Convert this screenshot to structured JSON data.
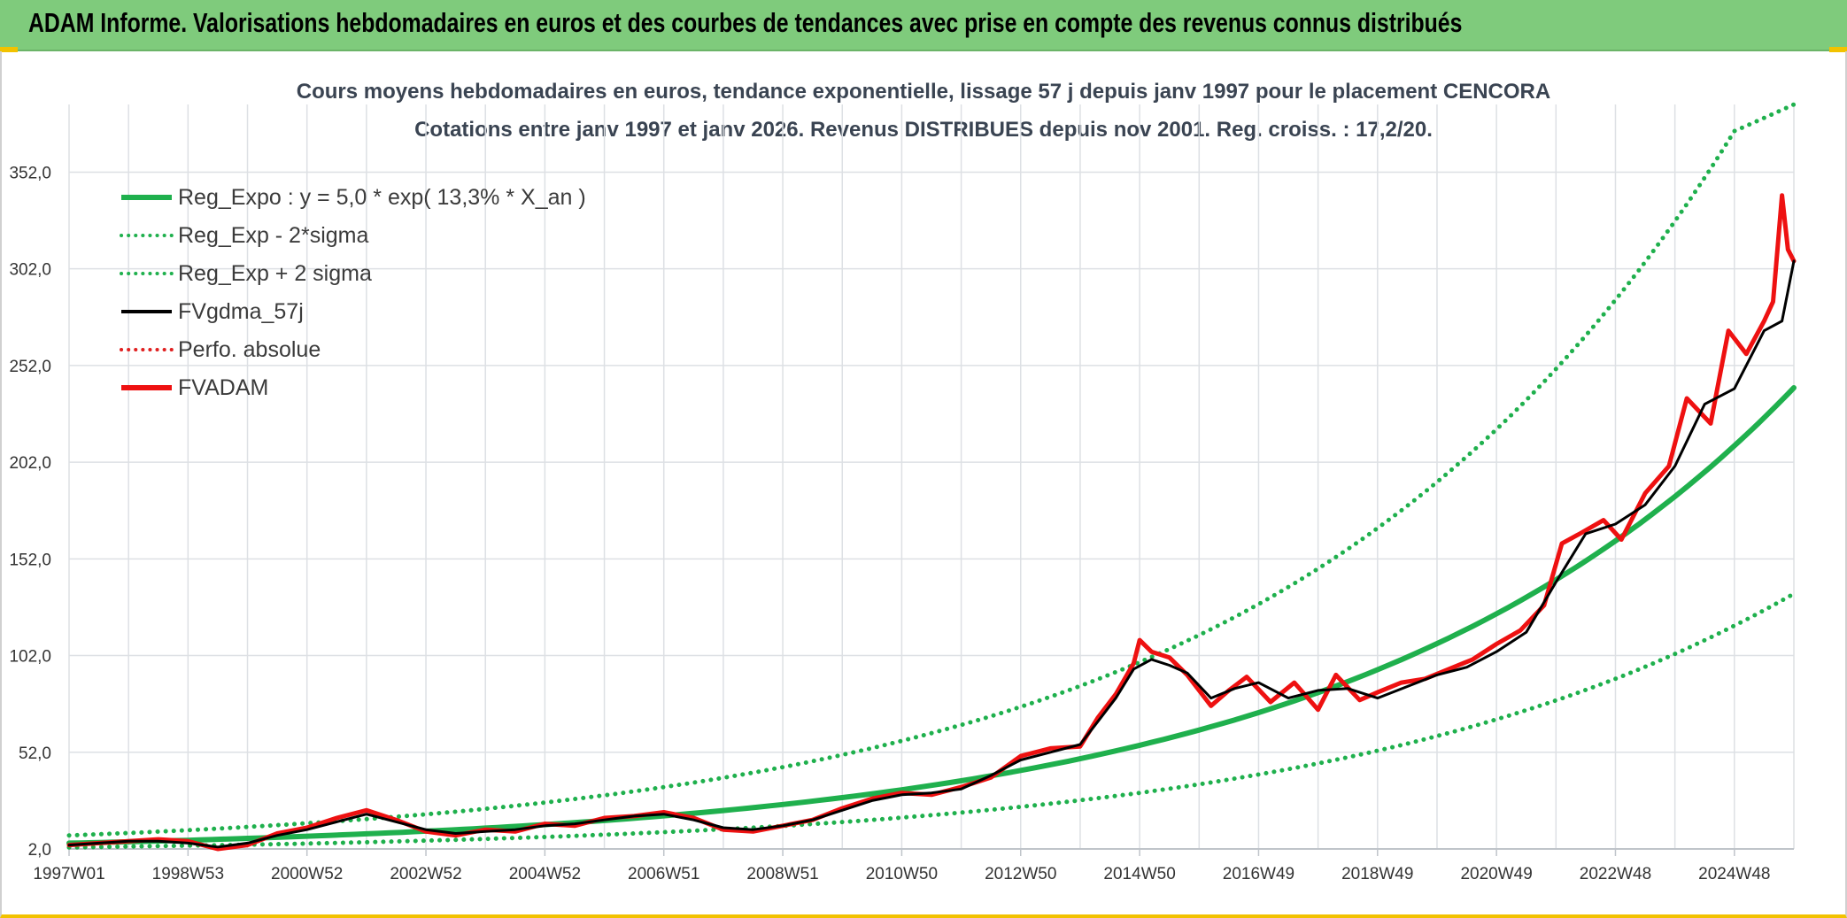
{
  "header": {
    "title": "ADAM Informe. Valorisations hebdomadaires en euros et des courbes de tendances avec prise en compte des revenus connus distribués"
  },
  "colors": {
    "banner": "#7fcb7c",
    "reg_expo": "#1fb04d",
    "sigma_bands": "#1fb04d",
    "fvgdma": "#000000",
    "perfo": "#e02020",
    "fvadam": "#ee1111",
    "accent": "#f2c200"
  },
  "chart_data": {
    "type": "line",
    "title_line1": "Cours moyens hebdomadaires en euros, tendance exponentielle, lissage 57 j depuis janv 1997 pour le placement CENCORA",
    "title_line2": "Cotations entre janv 1997 et janv 2026. Revenus DISTRIBUES depuis nov 2001. Reg. croiss. : 17,2/20.",
    "xlabel": "",
    "ylabel": "",
    "x_range": [
      1997.0,
      2026.0
    ],
    "y_range": [
      2.0,
      387.0
    ],
    "y_ticks": [
      {
        "value": 2,
        "label": "2,0"
      },
      {
        "value": 52,
        "label": "52,0"
      },
      {
        "value": 102,
        "label": "102,0"
      },
      {
        "value": 152,
        "label": "152,0"
      },
      {
        "value": 202,
        "label": "202,0"
      },
      {
        "value": 252,
        "label": "252,0"
      },
      {
        "value": 302,
        "label": "302,0"
      },
      {
        "value": 352,
        "label": "352,0"
      }
    ],
    "x_ticks": [
      {
        "value": 1997.0,
        "label": "1997W01"
      },
      {
        "value": 1999.0,
        "label": "1998W53"
      },
      {
        "value": 2001.0,
        "label": "2000W52"
      },
      {
        "value": 2003.0,
        "label": "2002W52"
      },
      {
        "value": 2005.0,
        "label": "2004W52"
      },
      {
        "value": 2007.0,
        "label": "2006W51"
      },
      {
        "value": 2009.0,
        "label": "2008W51"
      },
      {
        "value": 2011.0,
        "label": "2010W50"
      },
      {
        "value": 2013.0,
        "label": "2012W50"
      },
      {
        "value": 2015.0,
        "label": "2014W50"
      },
      {
        "value": 2017.0,
        "label": "2016W49"
      },
      {
        "value": 2019.0,
        "label": "2018W49"
      },
      {
        "value": 2021.0,
        "label": "2020W49"
      },
      {
        "value": 2023.0,
        "label": "2022W48"
      },
      {
        "value": 2025.0,
        "label": "2024W48"
      }
    ],
    "grid": true,
    "legend_position": "top-left",
    "legend": [
      {
        "label": "Reg_Expo : y = 5,0 * exp( 13,3% *  X_an )",
        "style": "solid-thick",
        "color": "#1fb04d"
      },
      {
        "label": "Reg_Exp - 2*sigma",
        "style": "dotted",
        "color": "#1fb04d"
      },
      {
        "label": "Reg_Exp + 2 sigma",
        "style": "dotted",
        "color": "#1fb04d"
      },
      {
        "label": "FVgdma_57j",
        "style": "solid",
        "color": "#000000"
      },
      {
        "label": "Perfo. absolue",
        "style": "dotted",
        "color": "#e02020"
      },
      {
        "label": "FVADAM",
        "style": "solid-thick",
        "color": "#ee1111"
      }
    ],
    "series": [
      {
        "name": "Reg_Expo",
        "x": [
          1997.0,
          1999.0,
          2001.0,
          2003.0,
          2005.0,
          2007.0,
          2009.0,
          2011.0,
          2013.0,
          2015.0,
          2017.0,
          2019.0,
          2021.0,
          2023.0,
          2025.0,
          2026.0
        ],
        "values": [
          5.0,
          6.5,
          8.6,
          11.2,
          14.6,
          19.1,
          25.0,
          32.6,
          42.6,
          55.6,
          72.5,
          94.7,
          123.6,
          161.3,
          210.5,
          240.5
        ]
      },
      {
        "name": "Reg_Exp - 2*sigma",
        "x": [
          1997.0,
          1999.0,
          2001.0,
          2003.0,
          2005.0,
          2007.0,
          2009.0,
          2011.0,
          2013.0,
          2015.0,
          2017.0,
          2019.0,
          2021.0,
          2023.0,
          2025.0,
          2026.0
        ],
        "values": [
          2.8,
          3.7,
          4.8,
          6.3,
          8.2,
          10.7,
          13.9,
          18.2,
          23.8,
          31.0,
          40.5,
          52.8,
          69.0,
          90.0,
          117.5,
          134.0
        ]
      },
      {
        "name": "Reg_Exp + 2 sigma",
        "x": [
          1997.0,
          1999.0,
          2001.0,
          2003.0,
          2005.0,
          2007.0,
          2009.0,
          2011.0,
          2013.0,
          2015.0,
          2017.0,
          2019.0,
          2021.0,
          2023.0,
          2025.0,
          2026.0
        ],
        "values": [
          9.0,
          11.7,
          15.3,
          19.9,
          26.0,
          34.0,
          44.3,
          57.9,
          75.5,
          98.6,
          128.6,
          167.9,
          219.0,
          285.9,
          373.2,
          387.0
        ]
      },
      {
        "name": "FVgdma_57j",
        "x": [
          1997.0,
          1997.5,
          1998.0,
          1998.5,
          1999.0,
          1999.5,
          2000.0,
          2000.5,
          2001.0,
          2001.5,
          2002.0,
          2002.5,
          2003.0,
          2003.5,
          2004.0,
          2004.5,
          2005.0,
          2005.5,
          2006.0,
          2006.5,
          2007.0,
          2007.5,
          2008.0,
          2008.5,
          2009.0,
          2009.5,
          2010.0,
          2010.5,
          2011.0,
          2011.5,
          2012.0,
          2012.5,
          2013.0,
          2013.5,
          2014.0,
          2014.3,
          2014.6,
          2014.9,
          2015.2,
          2015.5,
          2015.8,
          2016.2,
          2016.6,
          2017.0,
          2017.5,
          2018.0,
          2018.5,
          2019.0,
          2019.5,
          2020.0,
          2020.5,
          2021.0,
          2021.5,
          2022.0,
          2022.5,
          2023.0,
          2023.5,
          2024.0,
          2024.5,
          2025.0,
          2025.5,
          2025.8,
          2026.0
        ],
        "values": [
          4,
          5,
          6,
          6,
          5,
          3,
          5,
          9,
          12,
          16,
          20,
          16,
          12,
          10,
          11,
          12,
          14,
          15,
          17,
          19,
          20,
          17,
          13,
          12,
          14,
          17,
          22,
          27,
          30,
          31,
          33,
          40,
          48,
          52,
          56,
          68,
          80,
          95,
          100,
          97,
          93,
          80,
          85,
          88,
          80,
          84,
          85,
          80,
          86,
          92,
          96,
          104,
          114,
          140,
          165,
          170,
          180,
          200,
          232,
          240,
          270,
          275,
          306
        ]
      },
      {
        "name": "Perfo. absolue",
        "x": [
          1997.0,
          1999.0,
          2001.0,
          2003.0,
          2005.0,
          2007.0,
          2009.0,
          2011.0,
          2013.0,
          2015.0,
          2017.0,
          2019.0,
          2021.0,
          2023.0,
          2025.0,
          2026.0
        ],
        "values": [
          4,
          5,
          12,
          12,
          12,
          20,
          14,
          30,
          48,
          100,
          86,
          82,
          96,
          170,
          240,
          306
        ]
      },
      {
        "name": "FVADAM",
        "x": [
          1997.0,
          1997.5,
          1998.0,
          1998.5,
          1999.0,
          1999.5,
          2000.0,
          2000.5,
          2001.0,
          2001.5,
          2002.0,
          2002.5,
          2003.0,
          2003.5,
          2004.0,
          2004.5,
          2005.0,
          2005.5,
          2006.0,
          2006.5,
          2007.0,
          2007.5,
          2008.0,
          2008.5,
          2009.0,
          2009.5,
          2010.0,
          2010.5,
          2011.0,
          2011.5,
          2012.0,
          2012.5,
          2013.0,
          2013.5,
          2014.0,
          2014.3,
          2014.6,
          2014.9,
          2015.0,
          2015.2,
          2015.5,
          2015.8,
          2016.2,
          2016.5,
          2016.8,
          2017.2,
          2017.6,
          2018.0,
          2018.3,
          2018.7,
          2019.0,
          2019.4,
          2019.8,
          2020.2,
          2020.6,
          2021.0,
          2021.4,
          2021.8,
          2022.1,
          2022.4,
          2022.8,
          2023.1,
          2023.5,
          2023.9,
          2024.2,
          2024.6,
          2024.9,
          2025.2,
          2025.5,
          2025.65,
          2025.8,
          2025.9,
          2026.0
        ],
        "values": [
          4,
          5,
          6,
          7,
          6,
          2,
          4,
          10,
          13,
          18,
          22,
          17,
          11,
          9,
          12,
          11,
          15,
          14,
          18,
          19,
          21,
          18,
          12,
          11,
          14,
          17,
          23,
          28,
          31,
          30,
          34,
          39,
          50,
          54,
          55,
          70,
          82,
          98,
          110,
          104,
          101,
          92,
          76,
          84,
          91,
          78,
          88,
          74,
          92,
          79,
          83,
          88,
          90,
          95,
          100,
          108,
          115,
          128,
          160,
          165,
          172,
          162,
          186,
          200,
          235,
          222,
          270,
          258,
          275,
          285,
          340,
          312,
          306
        ]
      }
    ]
  }
}
